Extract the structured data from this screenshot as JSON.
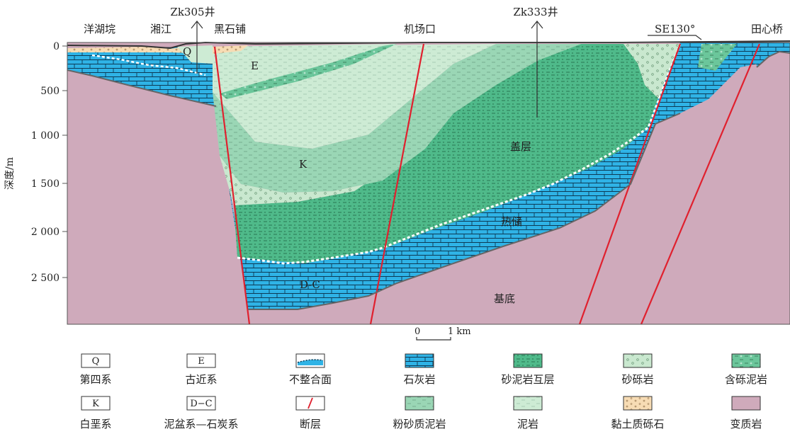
{
  "places": [
    "洋湖垸",
    "湘江",
    "黑石铺",
    "机场口",
    "田心桥"
  ],
  "wells": [
    "Zk305井",
    "Zk333井"
  ],
  "direction": "SE130°",
  "y_axis": {
    "label": "深度/m",
    "ticks": [
      "0",
      "500",
      "1 000",
      "1 500",
      "2 000",
      "2 500"
    ]
  },
  "units": {
    "quaternary": "Q",
    "paleogene": "E",
    "cretaceous": "K",
    "devonian_carboniferous": "D-C",
    "caprock": "盖层",
    "reservoir": "热储",
    "basement": "基底"
  },
  "scale": {
    "zero": "0",
    "one": "1 km"
  },
  "legend": [
    {
      "symbol": "Q",
      "label": "第四系"
    },
    {
      "symbol": "E",
      "label": "古近系"
    },
    {
      "symbol": "",
      "label": "不整合面"
    },
    {
      "symbol": "",
      "label": "石灰岩"
    },
    {
      "symbol": "",
      "label": "砂泥岩互层"
    },
    {
      "symbol": "",
      "label": "砂砾岩"
    },
    {
      "symbol": "",
      "label": "含砾泥岩"
    },
    {
      "symbol": "K",
      "label": "白垩系"
    },
    {
      "symbol": "D−C",
      "label": "泥盆系—石炭系"
    },
    {
      "symbol": "",
      "label": "断层"
    },
    {
      "symbol": "",
      "label": "粉砂质泥岩"
    },
    {
      "symbol": "",
      "label": "泥岩"
    },
    {
      "symbol": "",
      "label": "黏土质砾石"
    },
    {
      "symbol": "",
      "label": "变质岩"
    }
  ],
  "colors": {
    "limestone": "#2fb3e6",
    "metamorphic": "#cfaabb",
    "sandmud": "#4fba8a",
    "gravel": "#c9e8cf",
    "pebblymud": "#6bc69b",
    "siltmud": "#9ad6b5",
    "mudstone": "#cdebd4",
    "claygravel": "#f7dcb4",
    "fault": "#e0202e"
  }
}
